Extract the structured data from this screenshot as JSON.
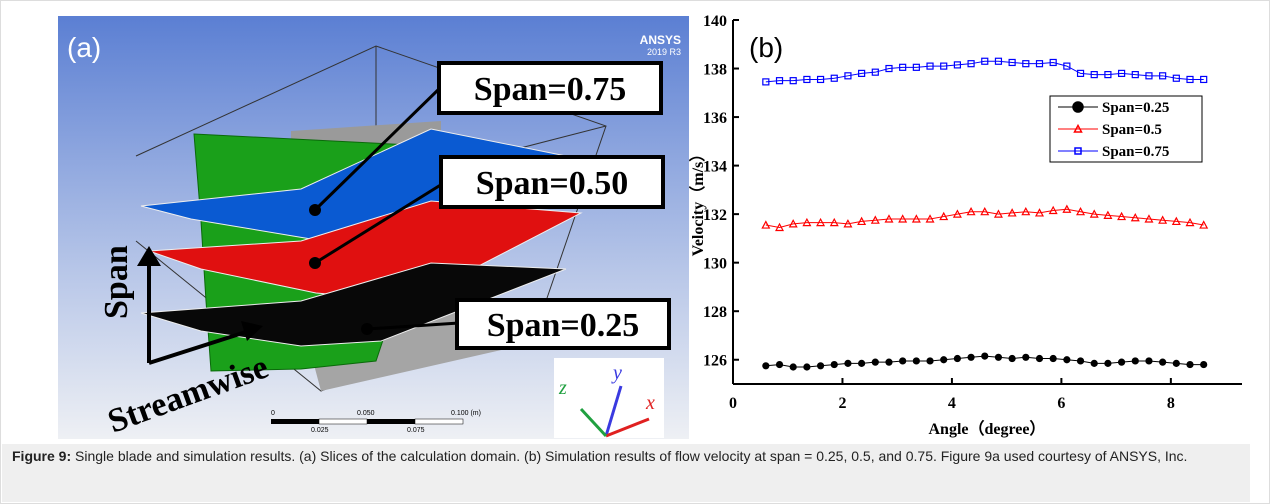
{
  "panel_a": {
    "label": "(a)",
    "brand": "ANSYS",
    "version": "2019 R3",
    "slices": [
      "Span=0.75",
      "Span=0.50",
      "Span=0.25"
    ],
    "axis_span": "Span",
    "axis_stream": "Streamwise",
    "scale_top": [
      "0",
      "0.050",
      "0.100 (m)"
    ],
    "scale_bottom": [
      "0.025",
      "0.075"
    ],
    "triad": [
      "x",
      "y",
      "z"
    ]
  },
  "chart_data": {
    "type": "line",
    "panel_label": "(b)",
    "xlabel": "Angle（degree）",
    "ylabel": "Velocity（m/s）",
    "x": [
      0.6,
      0.85,
      1.1,
      1.35,
      1.6,
      1.85,
      2.1,
      2.35,
      2.6,
      2.85,
      3.1,
      3.35,
      3.6,
      3.85,
      4.1,
      4.35,
      4.6,
      4.85,
      5.1,
      5.35,
      5.6,
      5.85,
      6.1,
      6.35,
      6.6,
      6.85,
      7.1,
      7.35,
      7.6,
      7.85,
      8.1,
      8.35,
      8.6
    ],
    "series": [
      {
        "name": "Span=0.25",
        "color": "#000000",
        "marker": "circle",
        "filled": true,
        "values": [
          125.75,
          125.8,
          125.7,
          125.7,
          125.75,
          125.8,
          125.85,
          125.85,
          125.9,
          125.9,
          125.95,
          125.95,
          125.95,
          126.0,
          126.05,
          126.1,
          126.15,
          126.1,
          126.05,
          126.1,
          126.05,
          126.05,
          126.0,
          125.95,
          125.85,
          125.85,
          125.9,
          125.95,
          125.95,
          125.9,
          125.85,
          125.8,
          125.8
        ]
      },
      {
        "name": "Span=0.5",
        "color": "#ff0000",
        "marker": "triangle",
        "filled": false,
        "values": [
          131.55,
          131.45,
          131.6,
          131.65,
          131.65,
          131.65,
          131.6,
          131.7,
          131.75,
          131.8,
          131.8,
          131.8,
          131.8,
          131.9,
          132.0,
          132.1,
          132.1,
          132.0,
          132.05,
          132.1,
          132.05,
          132.15,
          132.2,
          132.1,
          132.0,
          131.95,
          131.9,
          131.85,
          131.8,
          131.75,
          131.7,
          131.65,
          131.55
        ]
      },
      {
        "name": "Span=0.75",
        "color": "#0000ff",
        "marker": "square",
        "filled": false,
        "values": [
          137.45,
          137.5,
          137.5,
          137.55,
          137.55,
          137.6,
          137.7,
          137.8,
          137.85,
          138.0,
          138.05,
          138.05,
          138.1,
          138.1,
          138.15,
          138.2,
          138.3,
          138.3,
          138.25,
          138.2,
          138.2,
          138.25,
          138.1,
          137.8,
          137.75,
          137.75,
          137.8,
          137.75,
          137.7,
          137.7,
          137.6,
          137.55,
          137.55
        ]
      }
    ],
    "xlim": [
      0,
      9.3
    ],
    "ylim": [
      125,
      140
    ],
    "xticks": [
      0,
      2,
      4,
      6,
      8
    ],
    "yticks": [
      126,
      128,
      130,
      132,
      134,
      136,
      138,
      140
    ],
    "legend": "upper right"
  },
  "caption": {
    "label": "Figure 9:",
    "text": " Single blade and simulation results. (a) Slices of the calculation domain. (b) Simulation results of flow velocity at span = 0.25, 0.5, and 0.75. Figure 9a used courtesy of ANSYS, Inc."
  }
}
